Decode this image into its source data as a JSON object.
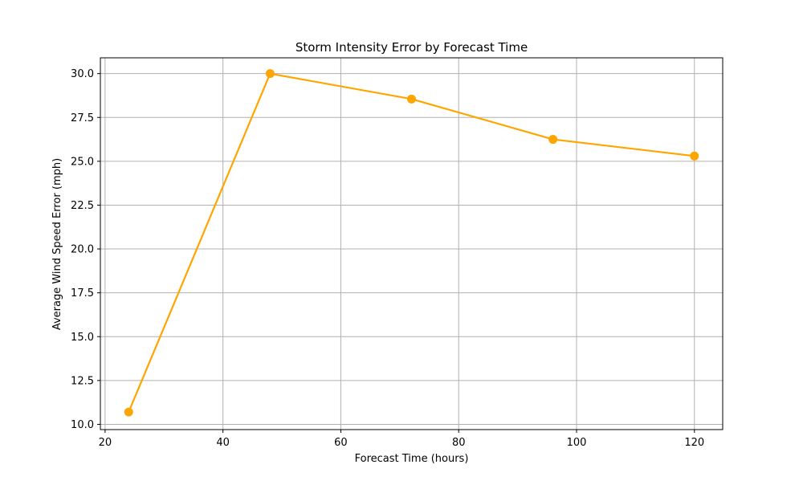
{
  "chart_data": {
    "type": "line",
    "title": "Storm Intensity Error by Forecast Time",
    "xlabel": "Forecast Time (hours)",
    "ylabel": "Average Wind Speed Error (mph)",
    "x": [
      24,
      48,
      72,
      96,
      120
    ],
    "series": [
      {
        "values": [
          10.7,
          30.0,
          28.55,
          26.25,
          25.3
        ]
      }
    ],
    "xlim": [
      19.2,
      124.8
    ],
    "ylim": [
      9.7,
      30.9
    ],
    "xticks": [
      20,
      40,
      60,
      80,
      100,
      120
    ],
    "yticks": [
      10.0,
      12.5,
      15.0,
      17.5,
      20.0,
      22.5,
      25.0,
      27.5,
      30.0
    ],
    "xtick_labels": [
      "20",
      "40",
      "60",
      "80",
      "100",
      "120"
    ],
    "ytick_labels": [
      "10.0",
      "12.5",
      "15.0",
      "17.5",
      "20.0",
      "22.5",
      "25.0",
      "27.5",
      "30.0"
    ],
    "grid": true,
    "colors": {
      "line": "#ffa500",
      "grid": "#b0b0b0",
      "axes": "#000000"
    }
  }
}
